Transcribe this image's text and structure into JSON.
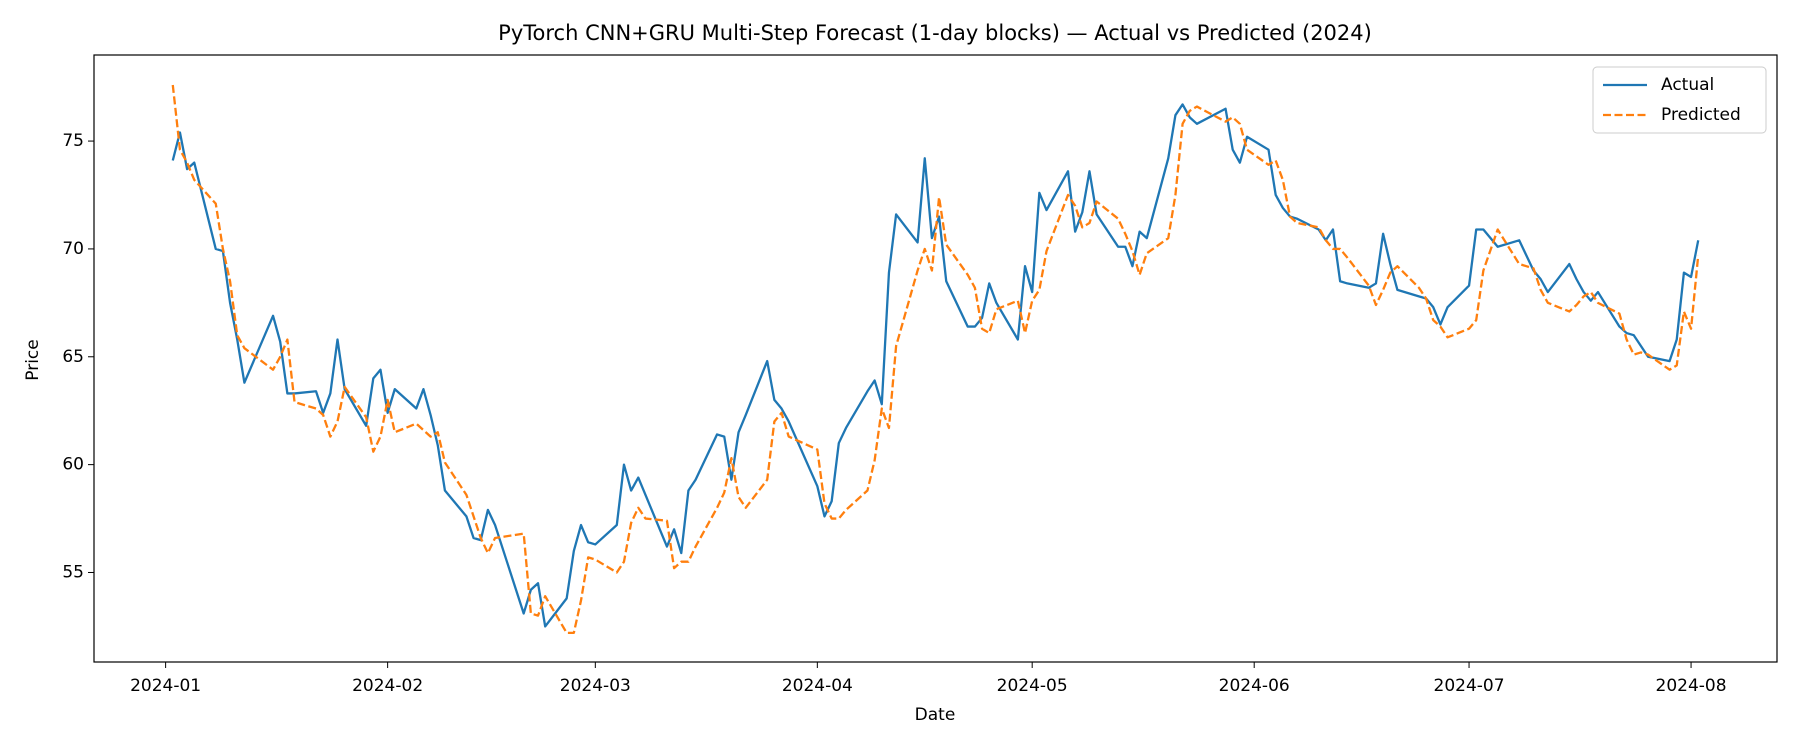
{
  "chart_data": {
    "type": "line",
    "title": "PyTorch CNN+GRU Multi-Step Forecast (1-day blocks) — Actual vs Predicted (2024)",
    "x_label": "Date",
    "y_label": "Price",
    "x": [
      "2024-01-02",
      "2024-01-03",
      "2024-01-04",
      "2024-01-05",
      "2024-01-08",
      "2024-01-09",
      "2024-01-10",
      "2024-01-11",
      "2024-01-12",
      "2024-01-16",
      "2024-01-17",
      "2024-01-18",
      "2024-01-19",
      "2024-01-22",
      "2024-01-23",
      "2024-01-24",
      "2024-01-25",
      "2024-01-26",
      "2024-01-29",
      "2024-01-30",
      "2024-01-31",
      "2024-02-01",
      "2024-02-02",
      "2024-02-05",
      "2024-02-06",
      "2024-02-07",
      "2024-02-08",
      "2024-02-09",
      "2024-02-12",
      "2024-02-13",
      "2024-02-14",
      "2024-02-15",
      "2024-02-16",
      "2024-02-20",
      "2024-02-21",
      "2024-02-22",
      "2024-02-23",
      "2024-02-26",
      "2024-02-27",
      "2024-02-28",
      "2024-02-29",
      "2024-03-01",
      "2024-03-04",
      "2024-03-05",
      "2024-03-06",
      "2024-03-07",
      "2024-03-08",
      "2024-03-11",
      "2024-03-12",
      "2024-03-13",
      "2024-03-14",
      "2024-03-15",
      "2024-03-18",
      "2024-03-19",
      "2024-03-20",
      "2024-03-21",
      "2024-03-22",
      "2024-03-25",
      "2024-03-26",
      "2024-03-27",
      "2024-03-28",
      "2024-04-01",
      "2024-04-02",
      "2024-04-03",
      "2024-04-04",
      "2024-04-05",
      "2024-04-08",
      "2024-04-09",
      "2024-04-10",
      "2024-04-11",
      "2024-04-12",
      "2024-04-15",
      "2024-04-16",
      "2024-04-17",
      "2024-04-18",
      "2024-04-19",
      "2024-04-22",
      "2024-04-23",
      "2024-04-24",
      "2024-04-25",
      "2024-04-26",
      "2024-04-29",
      "2024-04-30",
      "2024-05-01",
      "2024-05-02",
      "2024-05-03",
      "2024-05-06",
      "2024-05-07",
      "2024-05-08",
      "2024-05-09",
      "2024-05-10",
      "2024-05-13",
      "2024-05-14",
      "2024-05-15",
      "2024-05-16",
      "2024-05-17",
      "2024-05-20",
      "2024-05-21",
      "2024-05-22",
      "2024-05-23",
      "2024-05-24",
      "2024-05-28",
      "2024-05-29",
      "2024-05-30",
      "2024-05-31",
      "2024-06-03",
      "2024-06-04",
      "2024-06-05",
      "2024-06-06",
      "2024-06-07",
      "2024-06-10",
      "2024-06-11",
      "2024-06-12",
      "2024-06-13",
      "2024-06-14",
      "2024-06-17",
      "2024-06-18",
      "2024-06-19",
      "2024-06-20",
      "2024-06-21",
      "2024-06-24",
      "2024-06-25",
      "2024-06-26",
      "2024-06-27",
      "2024-06-28",
      "2024-07-01",
      "2024-07-02",
      "2024-07-03",
      "2024-07-05",
      "2024-07-08",
      "2024-07-09",
      "2024-07-10",
      "2024-07-11",
      "2024-07-12",
      "2024-07-15",
      "2024-07-16",
      "2024-07-17",
      "2024-07-18",
      "2024-07-19",
      "2024-07-22",
      "2024-07-23",
      "2024-07-24",
      "2024-07-25",
      "2024-07-26",
      "2024-07-29",
      "2024-07-30",
      "2024-07-31",
      "2024-08-01",
      "2024-08-02"
    ],
    "series": [
      {
        "name": "Actual",
        "color": "#1f77b4",
        "dash": "solid",
        "values": [
          74.1,
          75.4,
          73.7,
          74.0,
          70.0,
          69.9,
          67.5,
          65.8,
          63.8,
          66.9,
          65.7,
          63.3,
          63.3,
          63.4,
          62.4,
          63.3,
          65.8,
          63.5,
          61.8,
          64.0,
          64.4,
          62.4,
          63.5,
          62.6,
          63.5,
          62.3,
          60.9,
          58.8,
          57.6,
          56.6,
          56.5,
          57.9,
          57.2,
          53.1,
          54.2,
          54.5,
          52.5,
          53.8,
          56.0,
          57.2,
          56.4,
          56.3,
          57.2,
          60.0,
          58.8,
          59.4,
          58.6,
          56.2,
          57.0,
          55.9,
          58.8,
          59.3,
          61.4,
          61.3,
          59.3,
          61.5,
          62.3,
          64.8,
          63.0,
          62.6,
          62.0,
          59.0,
          57.6,
          58.3,
          61.0,
          61.7,
          63.4,
          63.9,
          62.8,
          68.9,
          71.6,
          70.3,
          74.2,
          70.5,
          71.5,
          68.5,
          66.4,
          66.4,
          66.8,
          68.4,
          67.5,
          65.8,
          69.2,
          68.0,
          72.6,
          71.8,
          73.6,
          70.8,
          71.7,
          73.6,
          71.6,
          70.1,
          70.1,
          69.2,
          70.8,
          70.5,
          74.2,
          76.2,
          76.7,
          76.1,
          75.8,
          76.5,
          74.6,
          74.0,
          75.2,
          74.6,
          72.5,
          71.9,
          71.5,
          71.4,
          70.9,
          70.4,
          70.9,
          68.5,
          68.4,
          68.2,
          68.4,
          70.7,
          69.3,
          68.1,
          67.8,
          67.7,
          67.3,
          66.5,
          67.3,
          68.3,
          70.9,
          70.9,
          70.1,
          70.4,
          69.7,
          69.0,
          68.6,
          68.0,
          69.3,
          68.6,
          68.0,
          67.6,
          68.0,
          66.4,
          66.1,
          66.0,
          65.5,
          65.0,
          64.8,
          65.8,
          68.9,
          68.7,
          70.4
        ]
      },
      {
        "name": "Predicted",
        "color": "#ff7f0e",
        "dash": "dashed",
        "values": [
          77.6,
          74.6,
          74.0,
          73.2,
          72.1,
          70.0,
          68.5,
          66.0,
          65.4,
          64.4,
          65.0,
          65.8,
          62.9,
          62.6,
          62.3,
          61.3,
          62.0,
          63.6,
          62.2,
          60.6,
          61.3,
          63.0,
          61.5,
          61.9,
          61.6,
          61.3,
          61.5,
          60.1,
          58.6,
          57.6,
          56.6,
          55.9,
          56.6,
          56.8,
          53.1,
          53.0,
          53.9,
          52.2,
          52.2,
          53.7,
          55.7,
          55.6,
          55.0,
          55.5,
          57.3,
          58.0,
          57.5,
          57.4,
          55.2,
          55.5,
          55.5,
          56.2,
          58.0,
          58.7,
          60.3,
          58.5,
          58.0,
          59.3,
          62.0,
          62.4,
          61.3,
          60.7,
          58.2,
          57.5,
          57.5,
          57.9,
          58.8,
          60.2,
          62.6,
          61.7,
          65.5,
          69.0,
          70.0,
          69.0,
          72.4,
          70.2,
          68.8,
          68.2,
          66.3,
          66.1,
          67.2,
          67.6,
          66.1,
          67.6,
          68.1,
          69.9,
          72.5,
          72.0,
          71.0,
          71.2,
          72.2,
          71.4,
          70.7,
          69.9,
          68.8,
          69.8,
          70.5,
          72.5,
          75.8,
          76.4,
          76.6,
          75.9,
          76.1,
          75.8,
          74.6,
          73.9,
          74.1,
          73.2,
          71.5,
          71.2,
          71.0,
          70.4,
          70.0,
          70.0,
          69.6,
          68.3,
          67.4,
          68.1,
          68.9,
          69.2,
          68.2,
          67.7,
          66.7,
          66.4,
          65.9,
          66.3,
          66.7,
          69.0,
          70.9,
          69.3,
          69.2,
          69.1,
          68.1,
          67.5,
          67.1,
          67.4,
          67.8,
          68.0,
          67.5,
          67.0,
          65.8,
          65.1,
          65.2,
          65.1,
          64.4,
          64.6,
          67.1,
          66.3,
          69.7
        ]
      }
    ],
    "xlim": [
      "2023-12-22",
      "2024-08-13"
    ],
    "xticks": [
      {
        "value": "2024-01-01",
        "label": "2024-01"
      },
      {
        "value": "2024-02-01",
        "label": "2024-02"
      },
      {
        "value": "2024-03-01",
        "label": "2024-03"
      },
      {
        "value": "2024-04-01",
        "label": "2024-04"
      },
      {
        "value": "2024-05-01",
        "label": "2024-05"
      },
      {
        "value": "2024-06-01",
        "label": "2024-06"
      },
      {
        "value": "2024-07-01",
        "label": "2024-07"
      },
      {
        "value": "2024-08-01",
        "label": "2024-08"
      }
    ],
    "ylim": [
      50.85,
      78.99
    ],
    "yticks": [
      55,
      60,
      65,
      70,
      75
    ],
    "grid": false,
    "legend": "upper right"
  }
}
